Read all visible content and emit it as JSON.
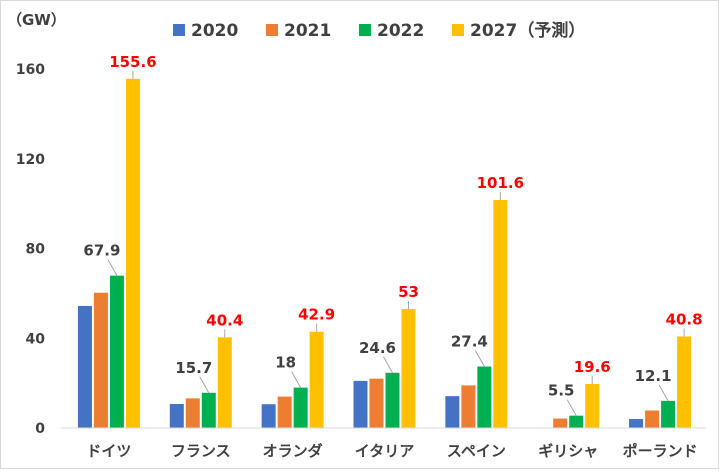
{
  "chart_data": {
    "type": "bar",
    "ylabel": "（GW）",
    "ylim": [
      0,
      160
    ],
    "yticks": [
      0,
      40,
      80,
      120,
      160
    ],
    "grid": false,
    "legend_position": "top",
    "categories": [
      "ドイツ",
      "フランス",
      "オランダ",
      "イタリア",
      "スペイン",
      "ギリシャ",
      "ポーランド"
    ],
    "series": [
      {
        "name": "2020",
        "color": "#4472c4",
        "values": [
          54.4,
          10.7,
          10.6,
          21.0,
          14.2,
          0,
          4.0
        ]
      },
      {
        "name": "2021",
        "color": "#ed7d31",
        "values": [
          60.3,
          13.2,
          14.0,
          22.0,
          19.0,
          4.2,
          7.8
        ]
      },
      {
        "name": "2022",
        "color": "#00b050",
        "values": [
          67.9,
          15.7,
          18.0,
          24.6,
          27.4,
          5.5,
          12.1
        ]
      },
      {
        "name": "2027（予測）",
        "color": "#ffc000",
        "values": [
          155.6,
          40.4,
          42.9,
          53.0,
          101.6,
          19.6,
          40.8
        ]
      }
    ],
    "data_labels": [
      {
        "category": 0,
        "series": 2,
        "text": "67.9",
        "color": "#404040"
      },
      {
        "category": 0,
        "series": 3,
        "text": "155.6",
        "color": "#ff0000"
      },
      {
        "category": 1,
        "series": 2,
        "text": "15.7",
        "color": "#404040"
      },
      {
        "category": 1,
        "series": 3,
        "text": "40.4",
        "color": "#ff0000"
      },
      {
        "category": 2,
        "series": 2,
        "text": "18",
        "color": "#404040"
      },
      {
        "category": 2,
        "series": 3,
        "text": "42.9",
        "color": "#ff0000"
      },
      {
        "category": 3,
        "series": 2,
        "text": "24.6",
        "color": "#404040"
      },
      {
        "category": 3,
        "series": 3,
        "text": "53",
        "color": "#ff0000"
      },
      {
        "category": 4,
        "series": 2,
        "text": "27.4",
        "color": "#404040"
      },
      {
        "category": 4,
        "series": 3,
        "text": "101.6",
        "color": "#ff0000"
      },
      {
        "category": 5,
        "series": 2,
        "text": "5.5",
        "color": "#404040"
      },
      {
        "category": 5,
        "series": 3,
        "text": "19.6",
        "color": "#ff0000"
      },
      {
        "category": 6,
        "series": 2,
        "text": "12.1",
        "color": "#404040"
      },
      {
        "category": 6,
        "series": 3,
        "text": "40.8",
        "color": "#ff0000"
      }
    ]
  }
}
